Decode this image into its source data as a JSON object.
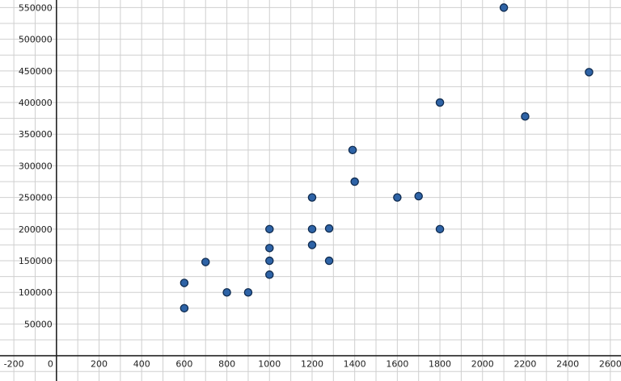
{
  "chart_data": {
    "type": "scatter",
    "title": "",
    "xlabel": "",
    "ylabel": "",
    "xlim": [
      -265,
      2650
    ],
    "ylim": [
      -40000,
      562000
    ],
    "x_ticks": [
      -200,
      0,
      200,
      400,
      600,
      800,
      1000,
      1200,
      1400,
      1600,
      1800,
      2000,
      2200,
      2400,
      2600
    ],
    "y_ticks": [
      50000,
      100000,
      150000,
      200000,
      250000,
      300000,
      350000,
      400000,
      450000,
      500000,
      550000
    ],
    "grid": true,
    "marker_color": "#2e63a6",
    "series": [
      {
        "points": [
          {
            "x": 600,
            "y": 115000
          },
          {
            "x": 600,
            "y": 75000
          },
          {
            "x": 700,
            "y": 148000
          },
          {
            "x": 800,
            "y": 100000
          },
          {
            "x": 900,
            "y": 100000
          },
          {
            "x": 1000,
            "y": 200000
          },
          {
            "x": 1000,
            "y": 170000
          },
          {
            "x": 1000,
            "y": 150000
          },
          {
            "x": 1000,
            "y": 128000
          },
          {
            "x": 1200,
            "y": 250000
          },
          {
            "x": 1200,
            "y": 200000
          },
          {
            "x": 1200,
            "y": 175000
          },
          {
            "x": 1280,
            "y": 201000
          },
          {
            "x": 1280,
            "y": 150000
          },
          {
            "x": 1390,
            "y": 325000
          },
          {
            "x": 1400,
            "y": 275000
          },
          {
            "x": 1600,
            "y": 250000
          },
          {
            "x": 1700,
            "y": 252000
          },
          {
            "x": 1800,
            "y": 400000
          },
          {
            "x": 1800,
            "y": 200000
          },
          {
            "x": 2100,
            "y": 550000
          },
          {
            "x": 2200,
            "y": 378000
          },
          {
            "x": 2500,
            "y": 448000
          }
        ]
      }
    ]
  }
}
